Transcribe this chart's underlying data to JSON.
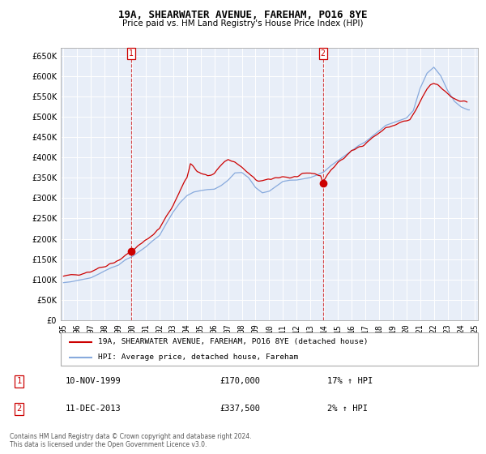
{
  "title": "19A, SHEARWATER AVENUE, FAREHAM, PO16 8YE",
  "subtitle": "Price paid vs. HM Land Registry's House Price Index (HPI)",
  "legend_property": "19A, SHEARWATER AVENUE, FAREHAM, PO16 8YE (detached house)",
  "legend_hpi": "HPI: Average price, detached house, Fareham",
  "annotation1_label": "1",
  "annotation1_date": "10-NOV-1999",
  "annotation1_price": 170000,
  "annotation1_hpi": "17% ↑ HPI",
  "annotation2_label": "2",
  "annotation2_date": "11-DEC-2013",
  "annotation2_price": 337500,
  "annotation2_hpi": "2% ↑ HPI",
  "footer": "Contains HM Land Registry data © Crown copyright and database right 2024.\nThis data is licensed under the Open Government Licence v3.0.",
  "property_color": "#cc0000",
  "hpi_color": "#88aadd",
  "background_color": "#ffffff",
  "chart_bg": "#e8eef8",
  "grid_color": "#ffffff",
  "ylim": [
    0,
    670000
  ],
  "yticks": [
    0,
    50000,
    100000,
    150000,
    200000,
    250000,
    300000,
    350000,
    400000,
    450000,
    500000,
    550000,
    600000,
    650000
  ],
  "ann1_x": 1999.917,
  "ann1_y": 170000,
  "ann2_x": 2013.917,
  "ann2_y": 337500,
  "xlim": [
    1994.8,
    2025.2
  ],
  "xticks": [
    1995,
    1996,
    1997,
    1998,
    1999,
    2000,
    2001,
    2002,
    2003,
    2004,
    2005,
    2006,
    2007,
    2008,
    2009,
    2010,
    2011,
    2012,
    2013,
    2014,
    2015,
    2016,
    2017,
    2018,
    2019,
    2020,
    2021,
    2022,
    2023,
    2024,
    2025
  ],
  "xtick_labels": [
    "95",
    "96",
    "97",
    "98",
    "99",
    "00",
    "01",
    "02",
    "03",
    "04",
    "05",
    "06",
    "07",
    "08",
    "09",
    "10",
    "11",
    "12",
    "13",
    "14",
    "15",
    "16",
    "17",
    "18",
    "19",
    "20",
    "21",
    "22",
    "23",
    "24",
    "25"
  ]
}
